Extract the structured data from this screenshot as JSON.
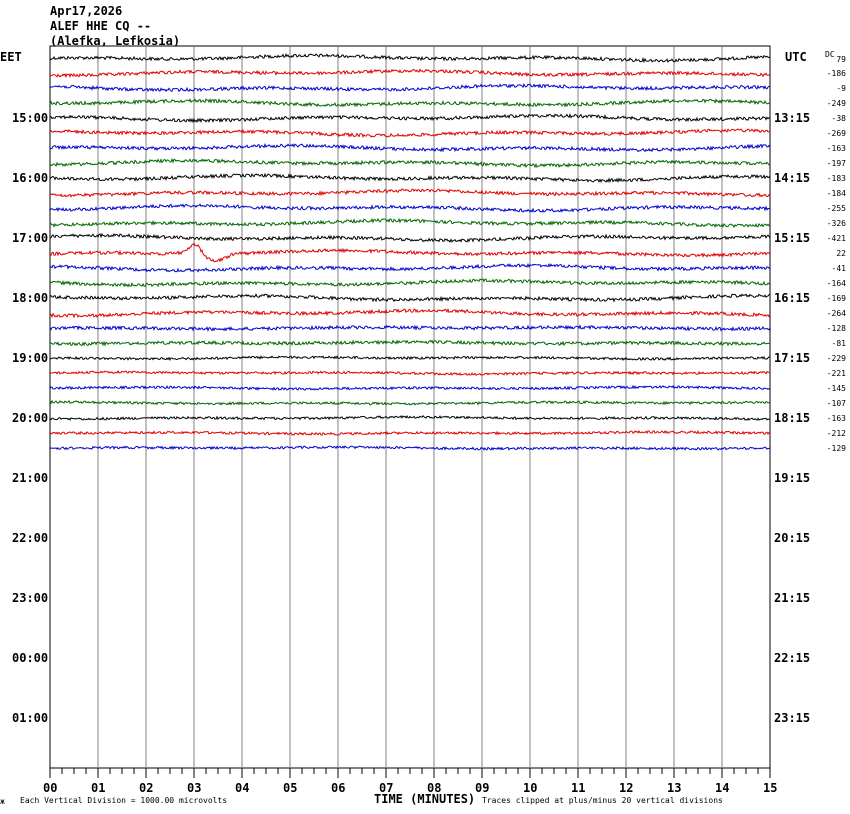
{
  "header": {
    "date": "Apr17,2026",
    "station": "ALEF HHE CQ --",
    "location": "(Alefka, Lefkosia)"
  },
  "left_timezone": "EET",
  "right_timezone": "UTC",
  "dc_label": "DC",
  "footer": {
    "left_note": "Each Vertical Division = 1000.00 microvolts",
    "x_axis_title": "TIME (MINUTES)",
    "right_note": "Traces clipped at plus/minus 20 vertical divisions",
    "corner_mark": "ж"
  },
  "colors": {
    "trace_cycle": [
      "#000000",
      "#dd0000",
      "#0000cc",
      "#006600"
    ],
    "grid": "#808080",
    "frame": "#000000"
  },
  "chart_data": {
    "type": "line",
    "subtype": "helicorder",
    "x_ticks": [
      "00",
      "01",
      "02",
      "03",
      "04",
      "05",
      "06",
      "07",
      "08",
      "09",
      "10",
      "11",
      "12",
      "13",
      "14",
      "15"
    ],
    "x_range_minutes": [
      0,
      15
    ],
    "row_minutes": 15,
    "rows_total": 48,
    "left_hour_labels": [
      "15:00",
      "16:00",
      "17:00",
      "18:00",
      "19:00",
      "20:00",
      "21:00",
      "22:00",
      "23:00",
      "00:00",
      "01:00"
    ],
    "right_hour_labels": [
      "13:15",
      "14:15",
      "15:15",
      "16:15",
      "17:15",
      "18:15",
      "19:15",
      "20:15",
      "21:15",
      "22:15",
      "23:15"
    ],
    "first_labeled_row": 4,
    "trace_offsets": [
      "79",
      "-186",
      "-9",
      "-249",
      "-38",
      "-269",
      "-163",
      "-197",
      "-183",
      "-184",
      "-255",
      "-326",
      "-421",
      "22",
      "-41",
      "-164",
      "-169",
      "-264",
      "-128",
      "-81",
      "-229",
      "-221",
      "-145",
      "-107",
      "-163",
      "-212",
      "-129"
    ],
    "traces_recorded": 27
  }
}
